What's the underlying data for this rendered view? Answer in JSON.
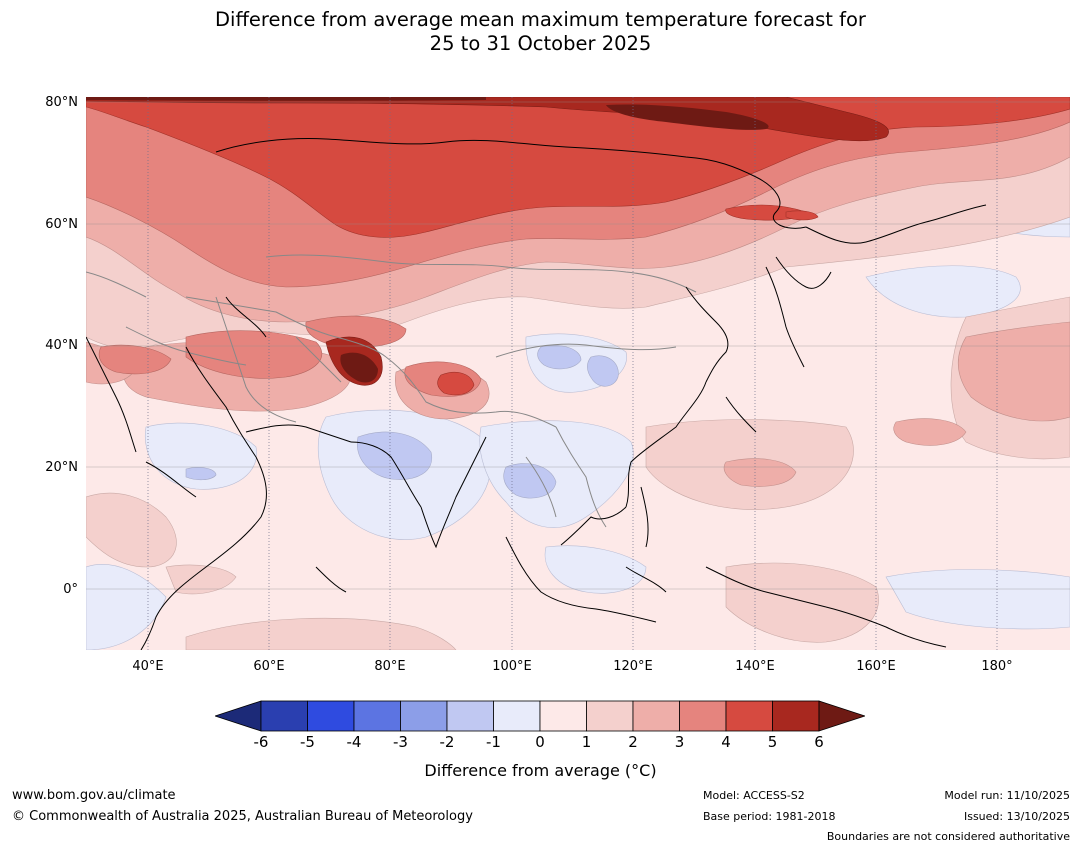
{
  "title": {
    "line1": "Difference from average mean maximum temperature forecast for",
    "line2": "25 to 31 October 2025"
  },
  "map": {
    "lat_labels": [
      "80°N",
      "60°N",
      "40°N",
      "20°N",
      "0°"
    ],
    "lon_labels": [
      "40°E",
      "60°E",
      "80°E",
      "100°E",
      "120°E",
      "140°E",
      "160°E",
      "180°"
    ],
    "extent": {
      "lon_min": 30,
      "lon_max": 191.5,
      "lat_min": -10,
      "lat_max": 80.5
    }
  },
  "colorbar": {
    "ticks": [
      "-6",
      "-5",
      "-4",
      "-3",
      "-2",
      "-1",
      "0",
      "1",
      "2",
      "3",
      "4",
      "5",
      "6"
    ],
    "colors": [
      "#1c2a78",
      "#2a3fb0",
      "#2f4be0",
      "#5c74e2",
      "#8c9ee8",
      "#c0c8f2",
      "#e8ebfa",
      "#fde9e8",
      "#f4d0cd",
      "#eeaea9",
      "#e5847e",
      "#d64a40",
      "#a8281f",
      "#6e1a14"
    ],
    "label": "Difference from average (°C)"
  },
  "footer": {
    "url": "www.bom.gov.au/climate",
    "copyright": "© Commonwealth of Australia 2025, Australian Bureau of Meteorology",
    "model": "Model: ACCESS-S2",
    "base_period": "Base period: 1981-2018",
    "model_run": "Model run: 11/10/2025",
    "issued": "Issued: 13/10/2025",
    "disclaimer": "Boundaries are not considered authoritative"
  }
}
